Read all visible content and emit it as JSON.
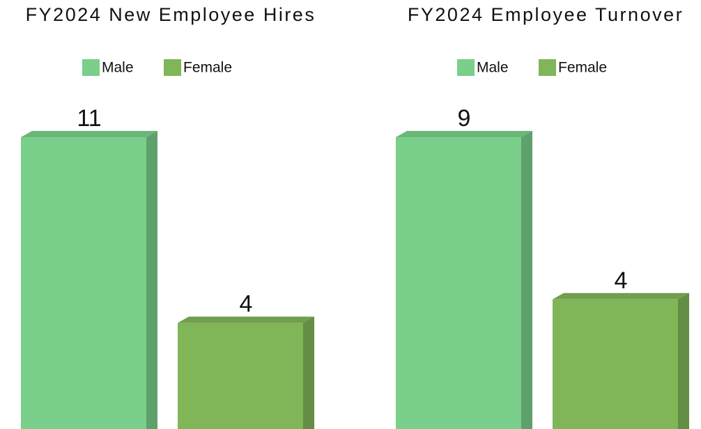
{
  "chart_data": [
    {
      "type": "bar",
      "title": "FY2024 New Employee Hires",
      "categories": [
        null
      ],
      "series": [
        {
          "name": "Male",
          "color": "#7acf8a",
          "values": [
            11
          ]
        },
        {
          "name": "Female",
          "color": "#80b558",
          "values": [
            4
          ]
        }
      ]
    },
    {
      "type": "bar",
      "title": "FY2024 Employee Turnover",
      "categories": [
        null
      ],
      "series": [
        {
          "name": "Male",
          "color": "#7acf8a",
          "values": [
            9
          ]
        },
        {
          "name": "Female",
          "color": "#80b558",
          "values": [
            4
          ]
        }
      ]
    }
  ]
}
